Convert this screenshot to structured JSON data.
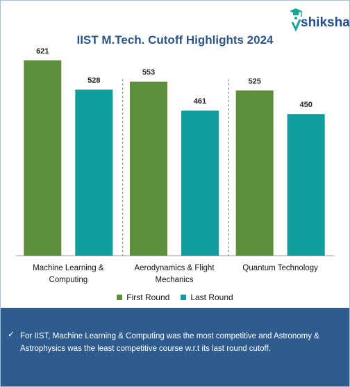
{
  "brand": {
    "name": "shiksha"
  },
  "chart_data": {
    "type": "bar",
    "title": "IIST M.Tech. Cutoff Highlights 2024",
    "categories": [
      "Machine Learning & Computing",
      "Aerodynamics & Flight Mechanics",
      "Quantum Technology"
    ],
    "series": [
      {
        "name": "First Round",
        "values": [
          621,
          553,
          525
        ],
        "color": "#5d8f3b"
      },
      {
        "name": "Last Round",
        "values": [
          528,
          461,
          450
        ],
        "color": "#0f9c9a"
      }
    ],
    "ylim": [
      0,
      700
    ],
    "grid": false,
    "legend": "bottom-center"
  },
  "footer": {
    "check": "✓",
    "note": "For IIST, Machine Learning & Computing was the most competitive and Astronomy & Astrophysics was the least competitive course w.r.t its last round cutoff."
  }
}
